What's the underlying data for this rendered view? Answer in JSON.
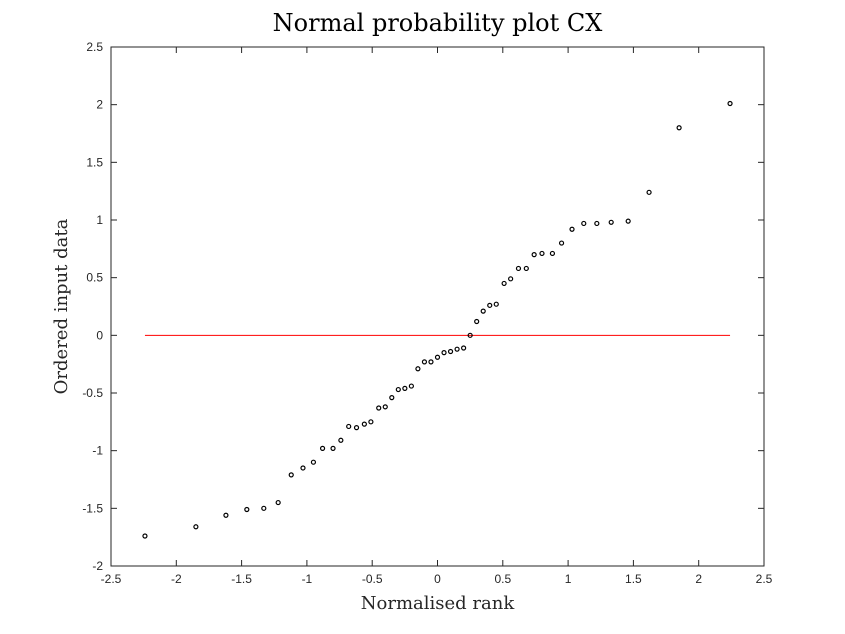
{
  "chart_data": {
    "type": "scatter",
    "title": "Normal probability plot CX",
    "xlabel": "Normalised rank",
    "ylabel": "Ordered input data",
    "xlim": [
      -2.5,
      2.5
    ],
    "ylim": [
      -2,
      2.5
    ],
    "xticks": [
      -2.5,
      -2,
      -1.5,
      -1,
      -0.5,
      0,
      0.5,
      1,
      1.5,
      2,
      2.5
    ],
    "yticks": [
      -2,
      -1.5,
      -1,
      -0.5,
      0,
      0.5,
      1,
      1.5,
      2,
      2.5
    ],
    "xtick_labels": [
      "-2.5",
      "-2",
      "-1.5",
      "-1",
      "-0.5",
      "0",
      "0.5",
      "1",
      "1.5",
      "2",
      "2.5"
    ],
    "ytick_labels": [
      "-2",
      "-1.5",
      "-1",
      "-0.5",
      "0",
      "0.5",
      "1",
      "1.5",
      "2",
      "2.5"
    ],
    "grid": false,
    "reference_line": {
      "x": [
        -2.24,
        2.24
      ],
      "y": [
        0,
        0
      ],
      "color": "#ff0000"
    },
    "series": [
      {
        "name": "data",
        "marker_color": "#000000",
        "points": [
          [
            -2.24,
            -1.74
          ],
          [
            -1.85,
            -1.66
          ],
          [
            -1.62,
            -1.56
          ],
          [
            -1.46,
            -1.51
          ],
          [
            -1.33,
            -1.5
          ],
          [
            -1.22,
            -1.45
          ],
          [
            -1.12,
            -1.21
          ],
          [
            -1.03,
            -1.15
          ],
          [
            -0.95,
            -1.1
          ],
          [
            -0.88,
            -0.98
          ],
          [
            -0.8,
            -0.98
          ],
          [
            -0.74,
            -0.91
          ],
          [
            -0.68,
            -0.79
          ],
          [
            -0.62,
            -0.8
          ],
          [
            -0.56,
            -0.77
          ],
          [
            -0.51,
            -0.75
          ],
          [
            -0.45,
            -0.63
          ],
          [
            -0.4,
            -0.62
          ],
          [
            -0.35,
            -0.54
          ],
          [
            -0.3,
            -0.47
          ],
          [
            -0.25,
            -0.46
          ],
          [
            -0.2,
            -0.44
          ],
          [
            -0.15,
            -0.29
          ],
          [
            -0.1,
            -0.23
          ],
          [
            -0.05,
            -0.23
          ],
          [
            0.0,
            -0.19
          ],
          [
            0.05,
            -0.15
          ],
          [
            0.1,
            -0.14
          ],
          [
            0.15,
            -0.12
          ],
          [
            0.2,
            -0.11
          ],
          [
            0.25,
            0.0
          ],
          [
            0.3,
            0.12
          ],
          [
            0.35,
            0.21
          ],
          [
            0.4,
            0.26
          ],
          [
            0.45,
            0.27
          ],
          [
            0.51,
            0.45
          ],
          [
            0.56,
            0.49
          ],
          [
            0.62,
            0.58
          ],
          [
            0.68,
            0.58
          ],
          [
            0.74,
            0.7
          ],
          [
            0.8,
            0.71
          ],
          [
            0.88,
            0.71
          ],
          [
            0.95,
            0.8
          ],
          [
            1.03,
            0.92
          ],
          [
            1.12,
            0.97
          ],
          [
            1.22,
            0.97
          ],
          [
            1.33,
            0.98
          ],
          [
            1.46,
            0.99
          ],
          [
            1.62,
            1.24
          ],
          [
            1.85,
            1.8
          ],
          [
            2.24,
            2.01
          ]
        ]
      }
    ]
  }
}
